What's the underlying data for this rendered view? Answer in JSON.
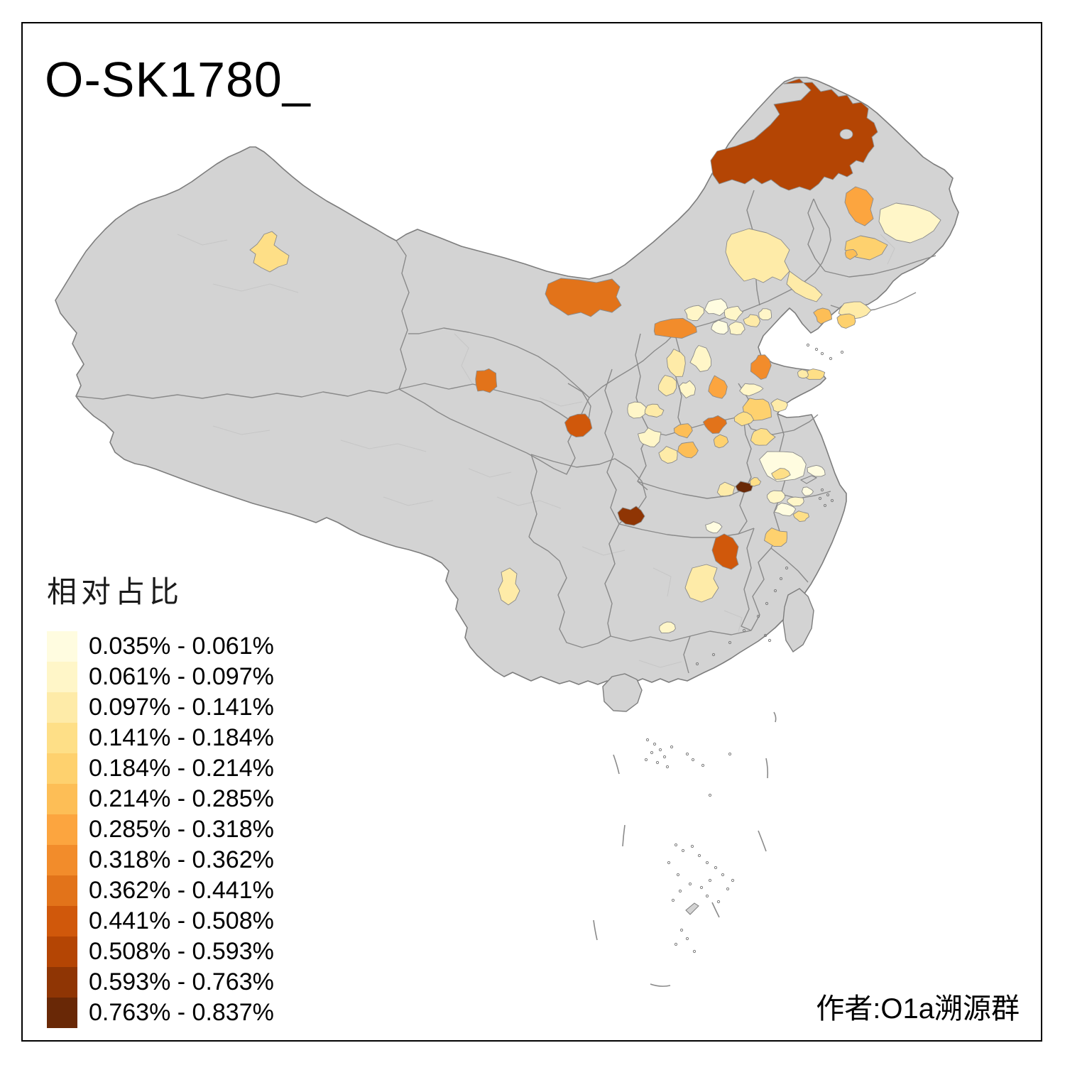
{
  "title": "O-SK1780_",
  "attribution": "作者:O1a溯源群",
  "legend": {
    "title": "相对占比",
    "items": [
      {
        "label": "0.035% - 0.061%",
        "color": "#FFFCE0"
      },
      {
        "label": "0.061% - 0.097%",
        "color": "#FFF6C8"
      },
      {
        "label": "0.097% - 0.141%",
        "color": "#FEEBA8"
      },
      {
        "label": "0.141% - 0.184%",
        "color": "#FEDF87"
      },
      {
        "label": "0.184% - 0.214%",
        "color": "#FED16E"
      },
      {
        "label": "0.214% - 0.285%",
        "color": "#FDBE56"
      },
      {
        "label": "0.285% - 0.318%",
        "color": "#FCA53F"
      },
      {
        "label": "0.318% - 0.362%",
        "color": "#F28C2B"
      },
      {
        "label": "0.362% - 0.441%",
        "color": "#E2731A"
      },
      {
        "label": "0.441% - 0.508%",
        "color": "#D0580B"
      },
      {
        "label": "0.508% - 0.593%",
        "color": "#B44504"
      },
      {
        "label": "0.593% - 0.763%",
        "color": "#8F3504"
      },
      {
        "label": "0.763% - 0.837%",
        "color": "#692806"
      }
    ]
  },
  "map": {
    "land_color": "#D3D3D3",
    "border_color": "#8A8A8A",
    "outline_color": "#7D7D7D",
    "faint_border_color": "#C6C6C6",
    "background_color": "#FFFFFF",
    "frame_color": "#000000",
    "regions": [
      {
        "id": "r_hlb",
        "class": 11
      },
      {
        "id": "r_byn",
        "class": 9
      },
      {
        "id": "r_xj",
        "class": 4
      },
      {
        "id": "r_qh",
        "class": 9
      },
      {
        "id": "r_gs",
        "class": 10
      },
      {
        "id": "r_es",
        "class": 12
      },
      {
        "id": "r_xy",
        "class": 13
      },
      {
        "id": "r_nc",
        "class": 10
      },
      {
        "id": "r_hng",
        "class": 3
      },
      {
        "id": "r_km",
        "class": 3
      },
      {
        "id": "r_xa",
        "class": 3
      },
      {
        "id": "r_tlarm",
        "class": 3
      },
      {
        "id": "r_sh",
        "class": 2
      },
      {
        "id": "r_qqhe",
        "class": 5
      },
      {
        "id": "r_hh",
        "class": 7
      },
      {
        "id": "r_b10",
        "class": 6
      },
      {
        "id": "r_b11",
        "class": 3
      },
      {
        "id": "r_b12",
        "class": 5
      },
      {
        "id": "r_b13",
        "class": 6
      },
      {
        "id": "r_b14",
        "class": 8
      },
      {
        "id": "r_b15",
        "class": 2
      },
      {
        "id": "r_b16",
        "class": 1
      },
      {
        "id": "r_b17",
        "class": 2
      },
      {
        "id": "r_b18",
        "class": 1
      },
      {
        "id": "r_b19",
        "class": 2
      },
      {
        "id": "r_b20",
        "class": 3
      },
      {
        "id": "r_b21",
        "class": 2
      },
      {
        "id": "r_b22",
        "class": 8
      },
      {
        "id": "r_b23",
        "class": 7
      },
      {
        "id": "r_b24",
        "class": 3
      },
      {
        "id": "r_b25",
        "class": 2
      },
      {
        "id": "r_b26",
        "class": 3
      },
      {
        "id": "r_b27",
        "class": 2
      },
      {
        "id": "r_b28",
        "class": 2
      },
      {
        "id": "r_b29",
        "class": 5
      },
      {
        "id": "r_b30",
        "class": 3
      },
      {
        "id": "r_b31",
        "class": 4
      },
      {
        "id": "r_b32",
        "class": 3
      },
      {
        "id": "r_b33",
        "class": 2
      },
      {
        "id": "r_b34",
        "class": 3
      },
      {
        "id": "r_b35",
        "class": 2
      },
      {
        "id": "r_b36",
        "class": 3
      },
      {
        "id": "r_b37",
        "class": 6
      },
      {
        "id": "r_b38",
        "class": 6
      },
      {
        "id": "r_b39",
        "class": 9
      },
      {
        "id": "r_b40",
        "class": 5
      },
      {
        "id": "r_b41",
        "class": 4
      },
      {
        "id": "r_b42",
        "class": 4
      },
      {
        "id": "r_b43",
        "class": 1
      },
      {
        "id": "r_b44",
        "class": 4
      },
      {
        "id": "r_b45",
        "class": 4
      },
      {
        "id": "r_b47",
        "class": 3
      },
      {
        "id": "r_b48",
        "class": 1
      },
      {
        "id": "r_b49",
        "class": 2
      },
      {
        "id": "r_b50",
        "class": 1
      },
      {
        "id": "r_b52",
        "class": 1
      },
      {
        "id": "r_b55",
        "class": 5
      },
      {
        "id": "r_b56",
        "class": 4
      },
      {
        "id": "r_b57",
        "class": 1
      },
      {
        "id": "r_b58",
        "class": 2
      },
      {
        "id": "r_b61",
        "class": 2
      }
    ]
  }
}
